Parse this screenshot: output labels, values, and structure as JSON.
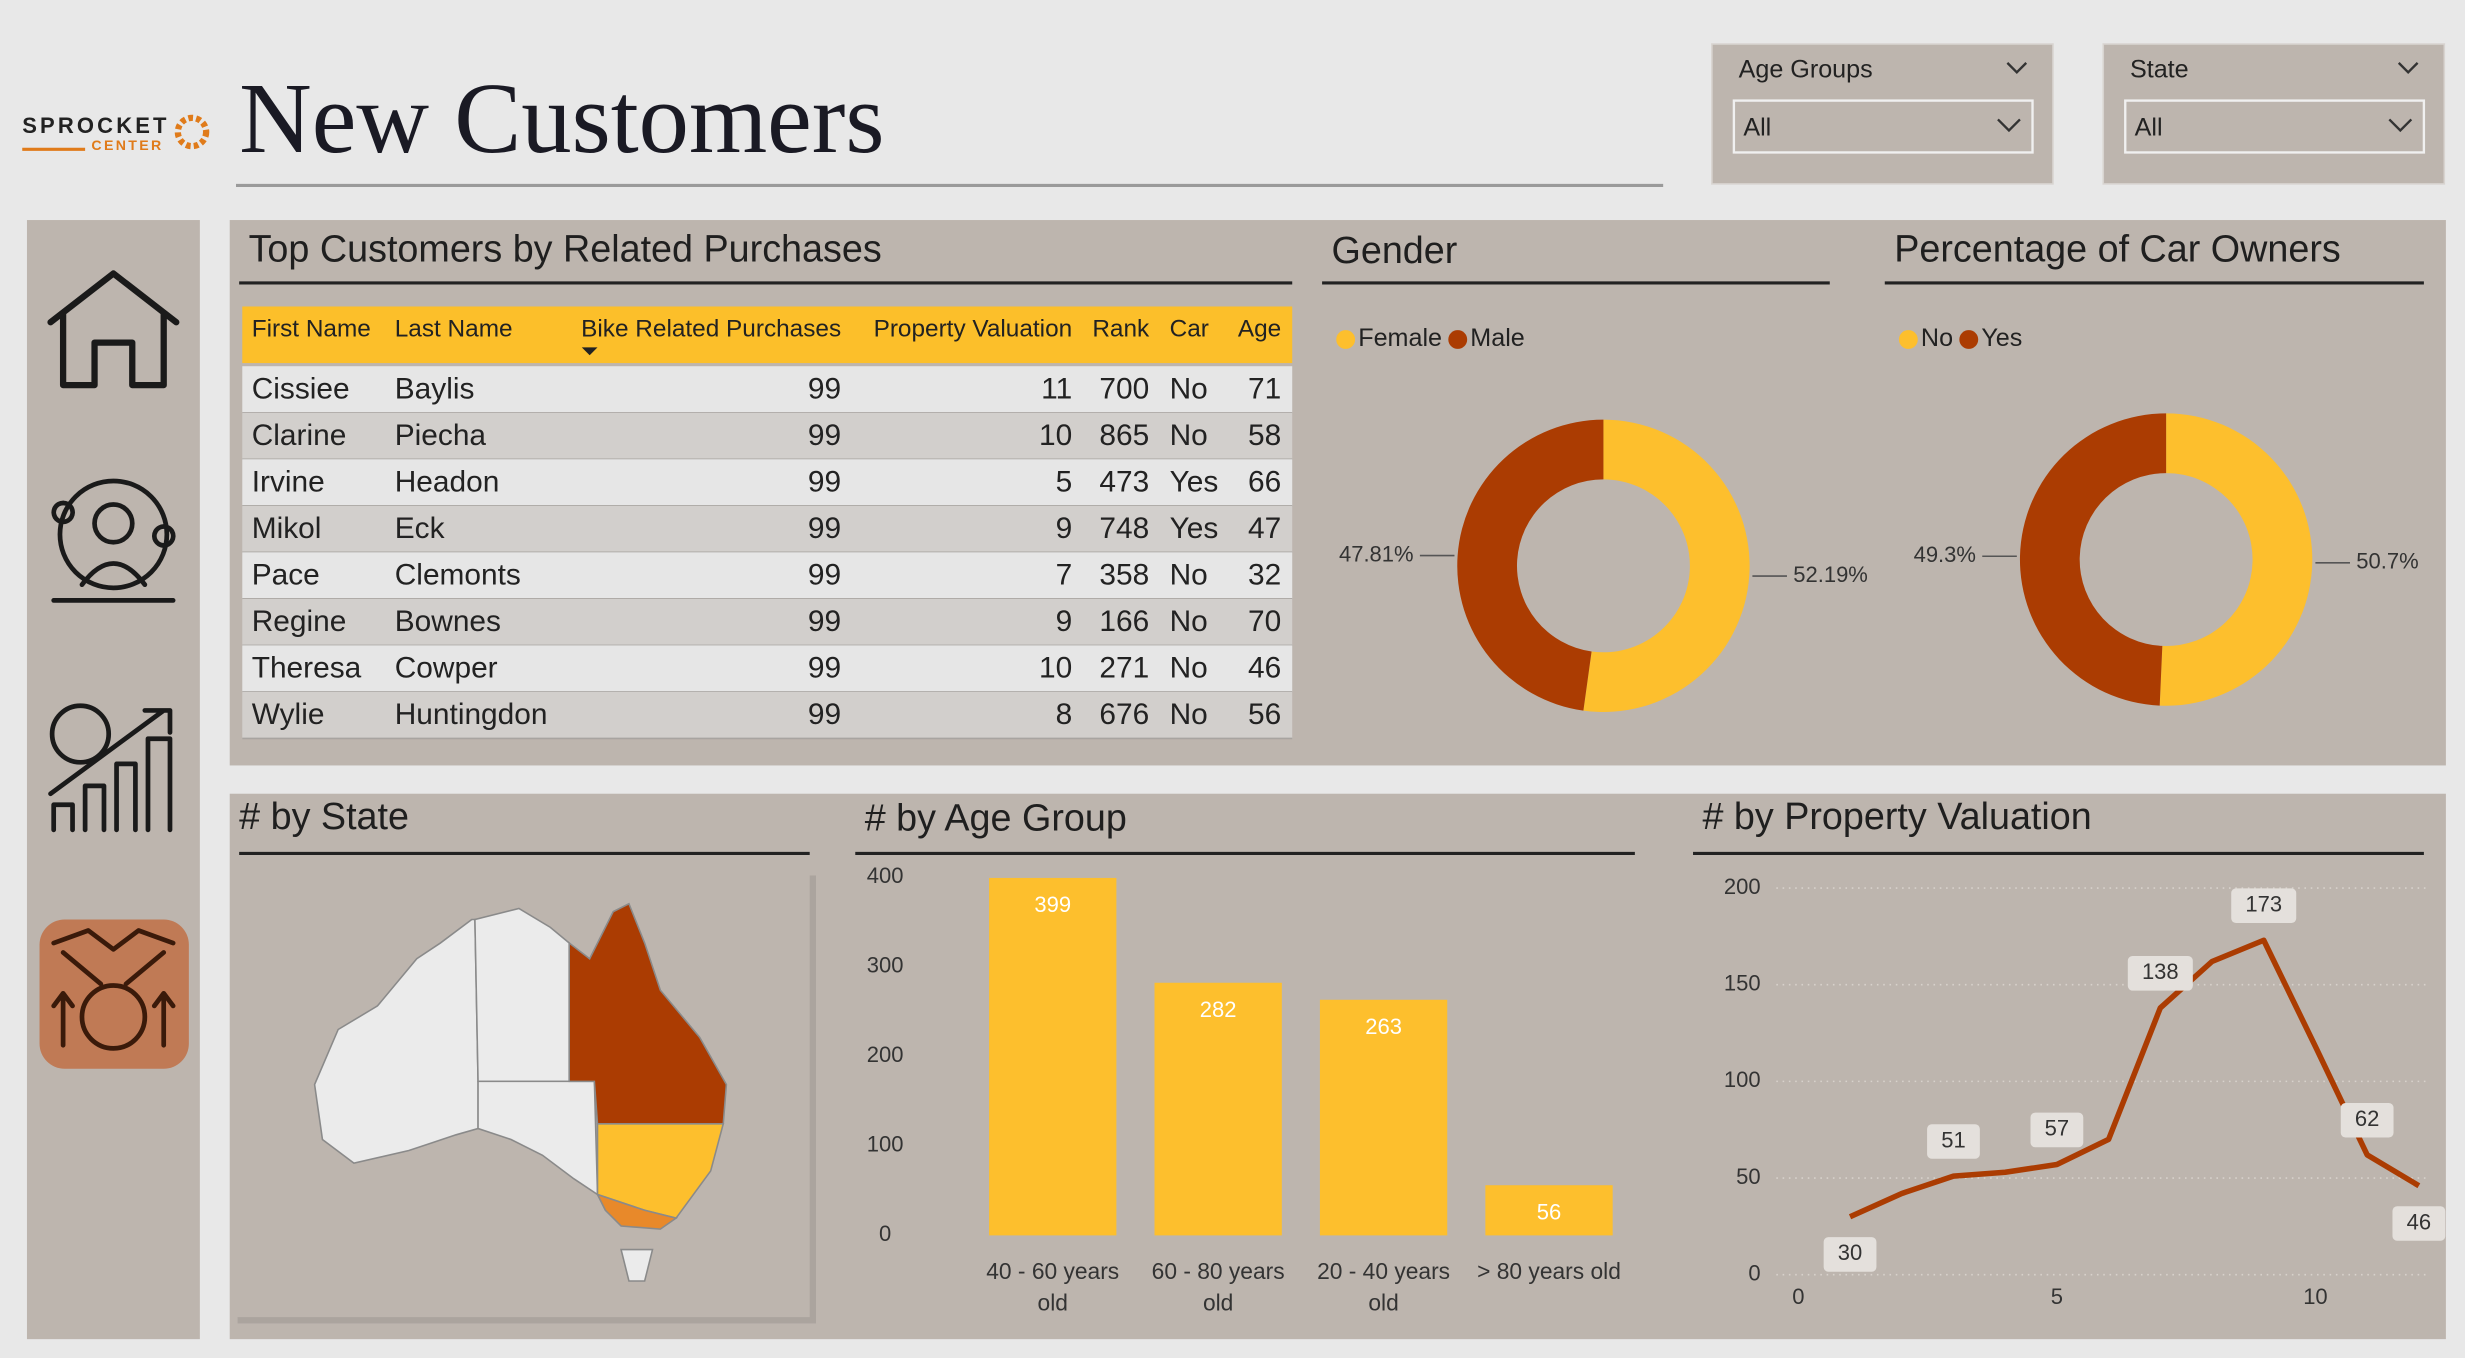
{
  "header": {
    "logo_top": "SPROCKET",
    "logo_bottom": "CENTER",
    "title": "New Customers"
  },
  "filters": [
    {
      "label": "Age Groups",
      "value": "All"
    },
    {
      "label": "State",
      "value": "All"
    }
  ],
  "table": {
    "title": "Top Customers by Related Purchases",
    "columns": [
      "First Name",
      "Last Name",
      "Bike Related Purchases",
      "Property Valuation",
      "Rank",
      "Car",
      "Age"
    ],
    "rows": [
      [
        "Cissiee",
        "Baylis",
        99,
        11,
        700,
        "No",
        71
      ],
      [
        "Clarine",
        "Piecha",
        99,
        10,
        865,
        "No",
        58
      ],
      [
        "Irvine",
        "Headon",
        99,
        5,
        473,
        "Yes",
        66
      ],
      [
        "Mikol",
        "Eck",
        99,
        9,
        748,
        "Yes",
        47
      ],
      [
        "Pace",
        "Clemonts",
        99,
        7,
        358,
        "No",
        32
      ],
      [
        "Regine",
        "Bownes",
        99,
        9,
        166,
        "No",
        70
      ],
      [
        "Theresa",
        "Cowper",
        99,
        10,
        271,
        "No",
        46
      ],
      [
        "Wylie",
        "Huntingdon",
        99,
        8,
        676,
        "No",
        56
      ]
    ]
  },
  "state_map": {
    "title": "# by State"
  },
  "chart_data": [
    {
      "type": "donut",
      "title": "Gender",
      "categories": [
        "Female",
        "Male"
      ],
      "values": [
        52.19,
        47.81
      ],
      "value_labels": [
        "52.19%",
        "47.81%"
      ],
      "colors": [
        "#fdbf2d",
        "#ab3c02"
      ]
    },
    {
      "type": "donut",
      "title": "Percentage of Car Owners",
      "categories": [
        "No",
        "Yes"
      ],
      "values": [
        50.7,
        49.3
      ],
      "value_labels": [
        "50.7%",
        "49.3%"
      ],
      "colors": [
        "#fdbf2d",
        "#ab3c02"
      ]
    },
    {
      "type": "bar",
      "title": "# by Age Group",
      "categories": [
        "40 - 60 years old",
        "60 - 80 years old",
        "20 - 40 years old",
        "> 80 years old"
      ],
      "values": [
        399,
        282,
        263,
        56
      ],
      "color": "#fdbf2d",
      "ylim": [
        0,
        400
      ],
      "yticks": [
        0,
        100,
        200,
        300,
        400
      ]
    },
    {
      "type": "line",
      "title": "# by Property Valuation",
      "x": [
        1,
        2,
        3,
        4,
        5,
        6,
        7,
        8,
        9,
        10,
        11,
        12
      ],
      "values": [
        30,
        42,
        51,
        53,
        57,
        70,
        138,
        162,
        173,
        118,
        62,
        46
      ],
      "value_labels": [
        "30",
        null,
        "51",
        null,
        "57",
        null,
        "138",
        null,
        "173",
        null,
        "62",
        "46"
      ],
      "color": "#ab3c02",
      "xlim": [
        0,
        12.5
      ],
      "xticks": [
        0,
        5,
        10
      ],
      "ylim": [
        0,
        200
      ],
      "yticks": [
        0,
        50,
        100,
        150,
        200
      ],
      "grid": true
    }
  ]
}
